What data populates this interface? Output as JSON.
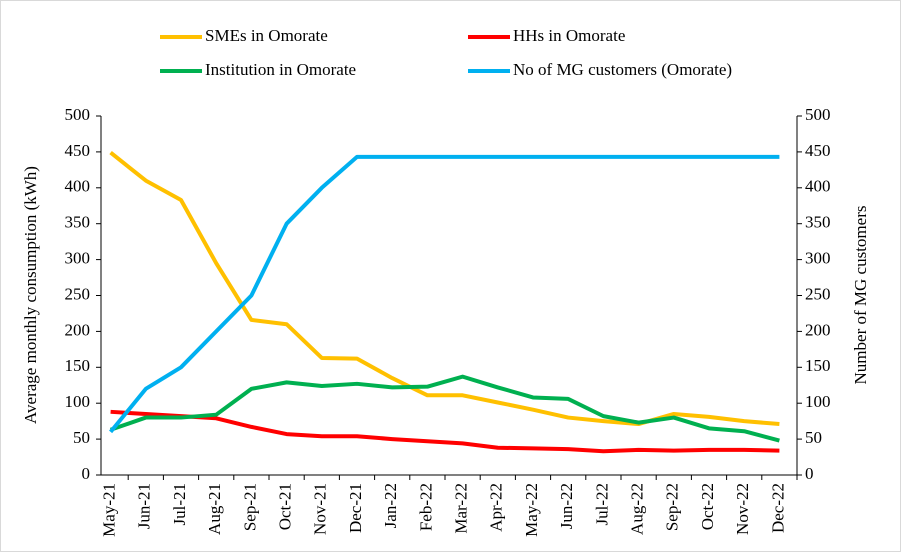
{
  "chart_data": {
    "type": "line",
    "categories": [
      "May-21",
      "Jun-21",
      "Jul-21",
      "Aug-21",
      "Sep-21",
      "Oct-21",
      "Nov-21",
      "Dec-21",
      "Jan-22",
      "Feb-22",
      "Mar-22",
      "Apr-22",
      "May-22",
      "Jun-22",
      "Jul-22",
      "Aug-22",
      "Sep-22",
      "Oct-22",
      "Nov-22",
      "Dec-22"
    ],
    "series": [
      {
        "name": "SMEs in Omorate",
        "color": "#FFC000",
        "values": [
          449,
          410,
          383,
          295,
          216,
          210,
          163,
          162,
          135,
          111,
          111,
          101,
          91,
          80,
          75,
          71,
          85,
          81,
          75,
          71
        ]
      },
      {
        "name": "HHs in Omorate",
        "color": "#FF0000",
        "values": [
          88,
          85,
          82,
          79,
          67,
          57,
          54,
          54,
          50,
          47,
          44,
          38,
          37,
          36,
          33,
          35,
          34,
          35,
          35,
          34
        ]
      },
      {
        "name": "Institution in Omorate",
        "color": "#00B050",
        "values": [
          63,
          80,
          80,
          84,
          120,
          129,
          124,
          127,
          122,
          123,
          137,
          122,
          108,
          106,
          82,
          73,
          80,
          65,
          61,
          48
        ]
      },
      {
        "name": "No of MG customers (Omorate)",
        "color": "#00B0F0",
        "axis": "y2",
        "values": [
          60,
          120,
          150,
          200,
          250,
          350,
          400,
          443,
          443,
          443,
          443,
          443,
          443,
          443,
          443,
          443,
          443,
          443,
          443,
          443
        ]
      }
    ],
    "ylabel": "Average monthly consumption (kWh)",
    "y2label": "Number of MG customers",
    "ylim": [
      0,
      500
    ],
    "yticks": [
      0,
      50,
      100,
      150,
      200,
      250,
      300,
      350,
      400,
      450,
      500
    ],
    "y2lim": [
      0,
      500
    ],
    "y2ticks": [
      0,
      50,
      100,
      150,
      200,
      250,
      300,
      350,
      400,
      450,
      500
    ]
  }
}
